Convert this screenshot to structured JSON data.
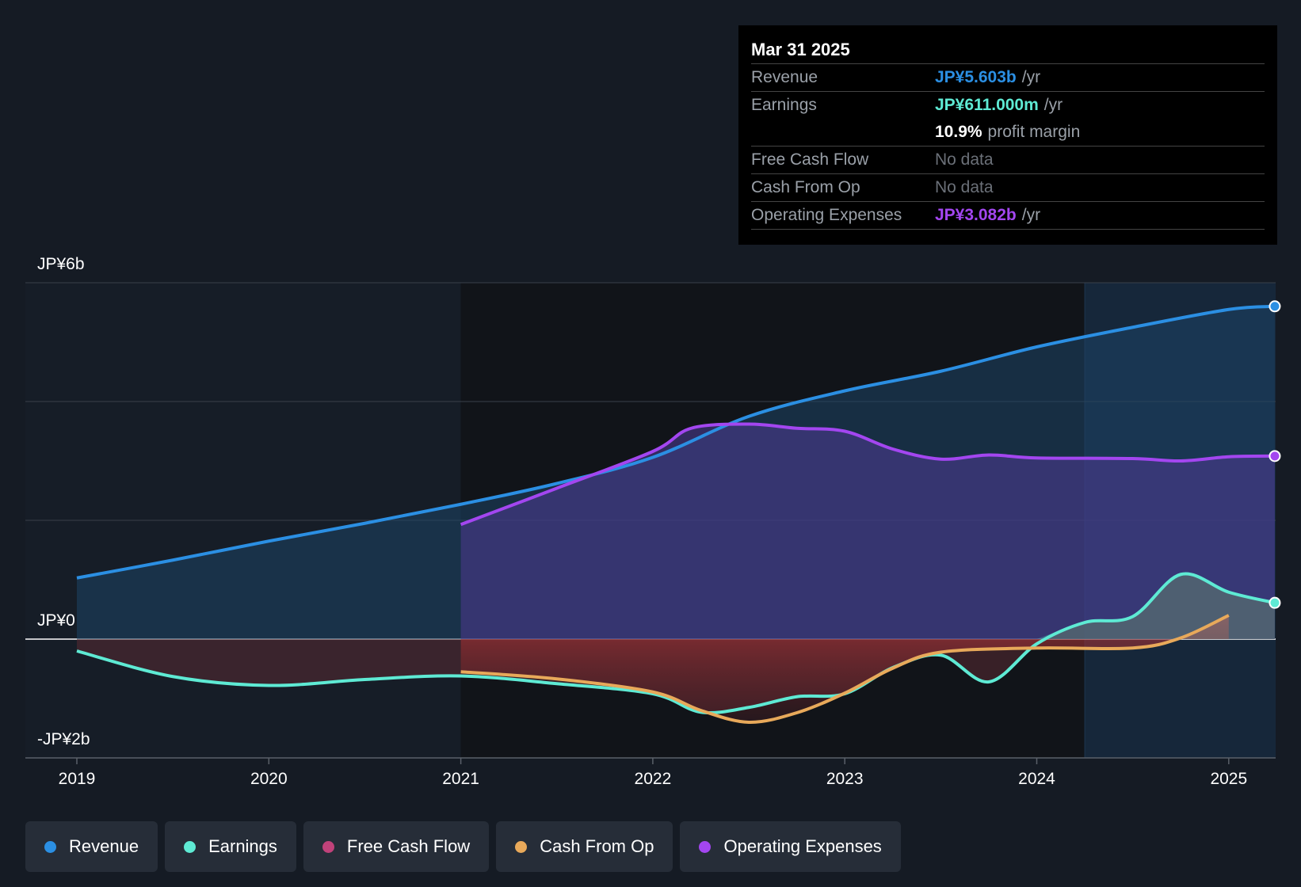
{
  "chart_data": {
    "type": "area",
    "title": "",
    "y_labels": {
      "top": "JP¥6b",
      "zero": "JP¥0",
      "bottom": "-JP¥2b"
    },
    "ylim": [
      -2,
      6
    ],
    "y_unit": "JP¥ billions",
    "x_ticks": [
      "2019",
      "2020",
      "2021",
      "2022",
      "2023",
      "2024",
      "2025"
    ],
    "xlim": [
      2018.73,
      2025.24
    ],
    "highlight_start": 2024.25,
    "series": [
      {
        "name": "Revenue",
        "color": "#2b8fe3",
        "points": [
          [
            2019.0,
            1.03
          ],
          [
            2019.5,
            1.33
          ],
          [
            2020.0,
            1.65
          ],
          [
            2020.5,
            1.95
          ],
          [
            2021.0,
            2.27
          ],
          [
            2021.5,
            2.62
          ],
          [
            2022.0,
            3.06
          ],
          [
            2022.5,
            3.75
          ],
          [
            2023.0,
            4.18
          ],
          [
            2023.5,
            4.51
          ],
          [
            2024.0,
            4.92
          ],
          [
            2024.5,
            5.25
          ],
          [
            2025.0,
            5.55
          ],
          [
            2025.24,
            5.603
          ]
        ]
      },
      {
        "name": "Earnings",
        "color": "#5eead4",
        "points": [
          [
            2019.0,
            -0.2
          ],
          [
            2019.5,
            -0.63
          ],
          [
            2020.0,
            -0.78
          ],
          [
            2020.5,
            -0.68
          ],
          [
            2021.0,
            -0.62
          ],
          [
            2021.5,
            -0.75
          ],
          [
            2022.0,
            -0.92
          ],
          [
            2022.25,
            -1.23
          ],
          [
            2022.5,
            -1.15
          ],
          [
            2022.75,
            -0.97
          ],
          [
            2023.0,
            -0.92
          ],
          [
            2023.25,
            -0.48
          ],
          [
            2023.5,
            -0.27
          ],
          [
            2023.75,
            -0.72
          ],
          [
            2024.0,
            -0.08
          ],
          [
            2024.25,
            0.28
          ],
          [
            2024.5,
            0.38
          ],
          [
            2024.75,
            1.09
          ],
          [
            2025.0,
            0.79
          ],
          [
            2025.24,
            0.611
          ]
        ]
      },
      {
        "name": "Free Cash Flow",
        "color": "#c0427a",
        "points": []
      },
      {
        "name": "Cash From Op",
        "color": "#e8a95a",
        "points": [
          [
            2021.0,
            -0.55
          ],
          [
            2021.5,
            -0.67
          ],
          [
            2022.0,
            -0.89
          ],
          [
            2022.25,
            -1.2
          ],
          [
            2022.5,
            -1.4
          ],
          [
            2022.75,
            -1.24
          ],
          [
            2023.0,
            -0.91
          ],
          [
            2023.25,
            -0.49
          ],
          [
            2023.5,
            -0.22
          ],
          [
            2024.0,
            -0.15
          ],
          [
            2024.5,
            -0.15
          ],
          [
            2024.75,
            0.02
          ],
          [
            2025.0,
            0.4
          ]
        ]
      },
      {
        "name": "Operating Expenses",
        "color": "#a346f0",
        "points": [
          [
            2021.0,
            1.93
          ],
          [
            2021.5,
            2.54
          ],
          [
            2022.0,
            3.16
          ],
          [
            2022.2,
            3.55
          ],
          [
            2022.5,
            3.62
          ],
          [
            2022.75,
            3.55
          ],
          [
            2023.0,
            3.5
          ],
          [
            2023.25,
            3.2
          ],
          [
            2023.5,
            3.03
          ],
          [
            2023.75,
            3.1
          ],
          [
            2024.0,
            3.05
          ],
          [
            2024.5,
            3.04
          ],
          [
            2024.75,
            3.0
          ],
          [
            2025.0,
            3.07
          ],
          [
            2025.24,
            3.082
          ]
        ]
      }
    ]
  },
  "tooltip": {
    "date": "Mar 31 2025",
    "rows": [
      {
        "label": "Revenue",
        "value": "JP¥5.603b",
        "unit": "/yr",
        "color": "#2b8fe3"
      },
      {
        "label": "Earnings",
        "value": "JP¥611.000m",
        "unit": "/yr",
        "color": "#5eead4"
      },
      {
        "label": "",
        "value": "10.9%",
        "unit": "profit margin",
        "color": "#ffffff"
      },
      {
        "label": "Free Cash Flow",
        "value": "No data",
        "unit": "",
        "color": "#6b7078"
      },
      {
        "label": "Cash From Op",
        "value": "No data",
        "unit": "",
        "color": "#6b7078"
      },
      {
        "label": "Operating Expenses",
        "value": "JP¥3.082b",
        "unit": "/yr",
        "color": "#a346f0"
      }
    ]
  },
  "legend": [
    {
      "label": "Revenue",
      "color": "#2b8fe3"
    },
    {
      "label": "Earnings",
      "color": "#5eead4"
    },
    {
      "label": "Free Cash Flow",
      "color": "#c0427a"
    },
    {
      "label": "Cash From Op",
      "color": "#e8a95a"
    },
    {
      "label": "Operating Expenses",
      "color": "#a346f0"
    }
  ]
}
